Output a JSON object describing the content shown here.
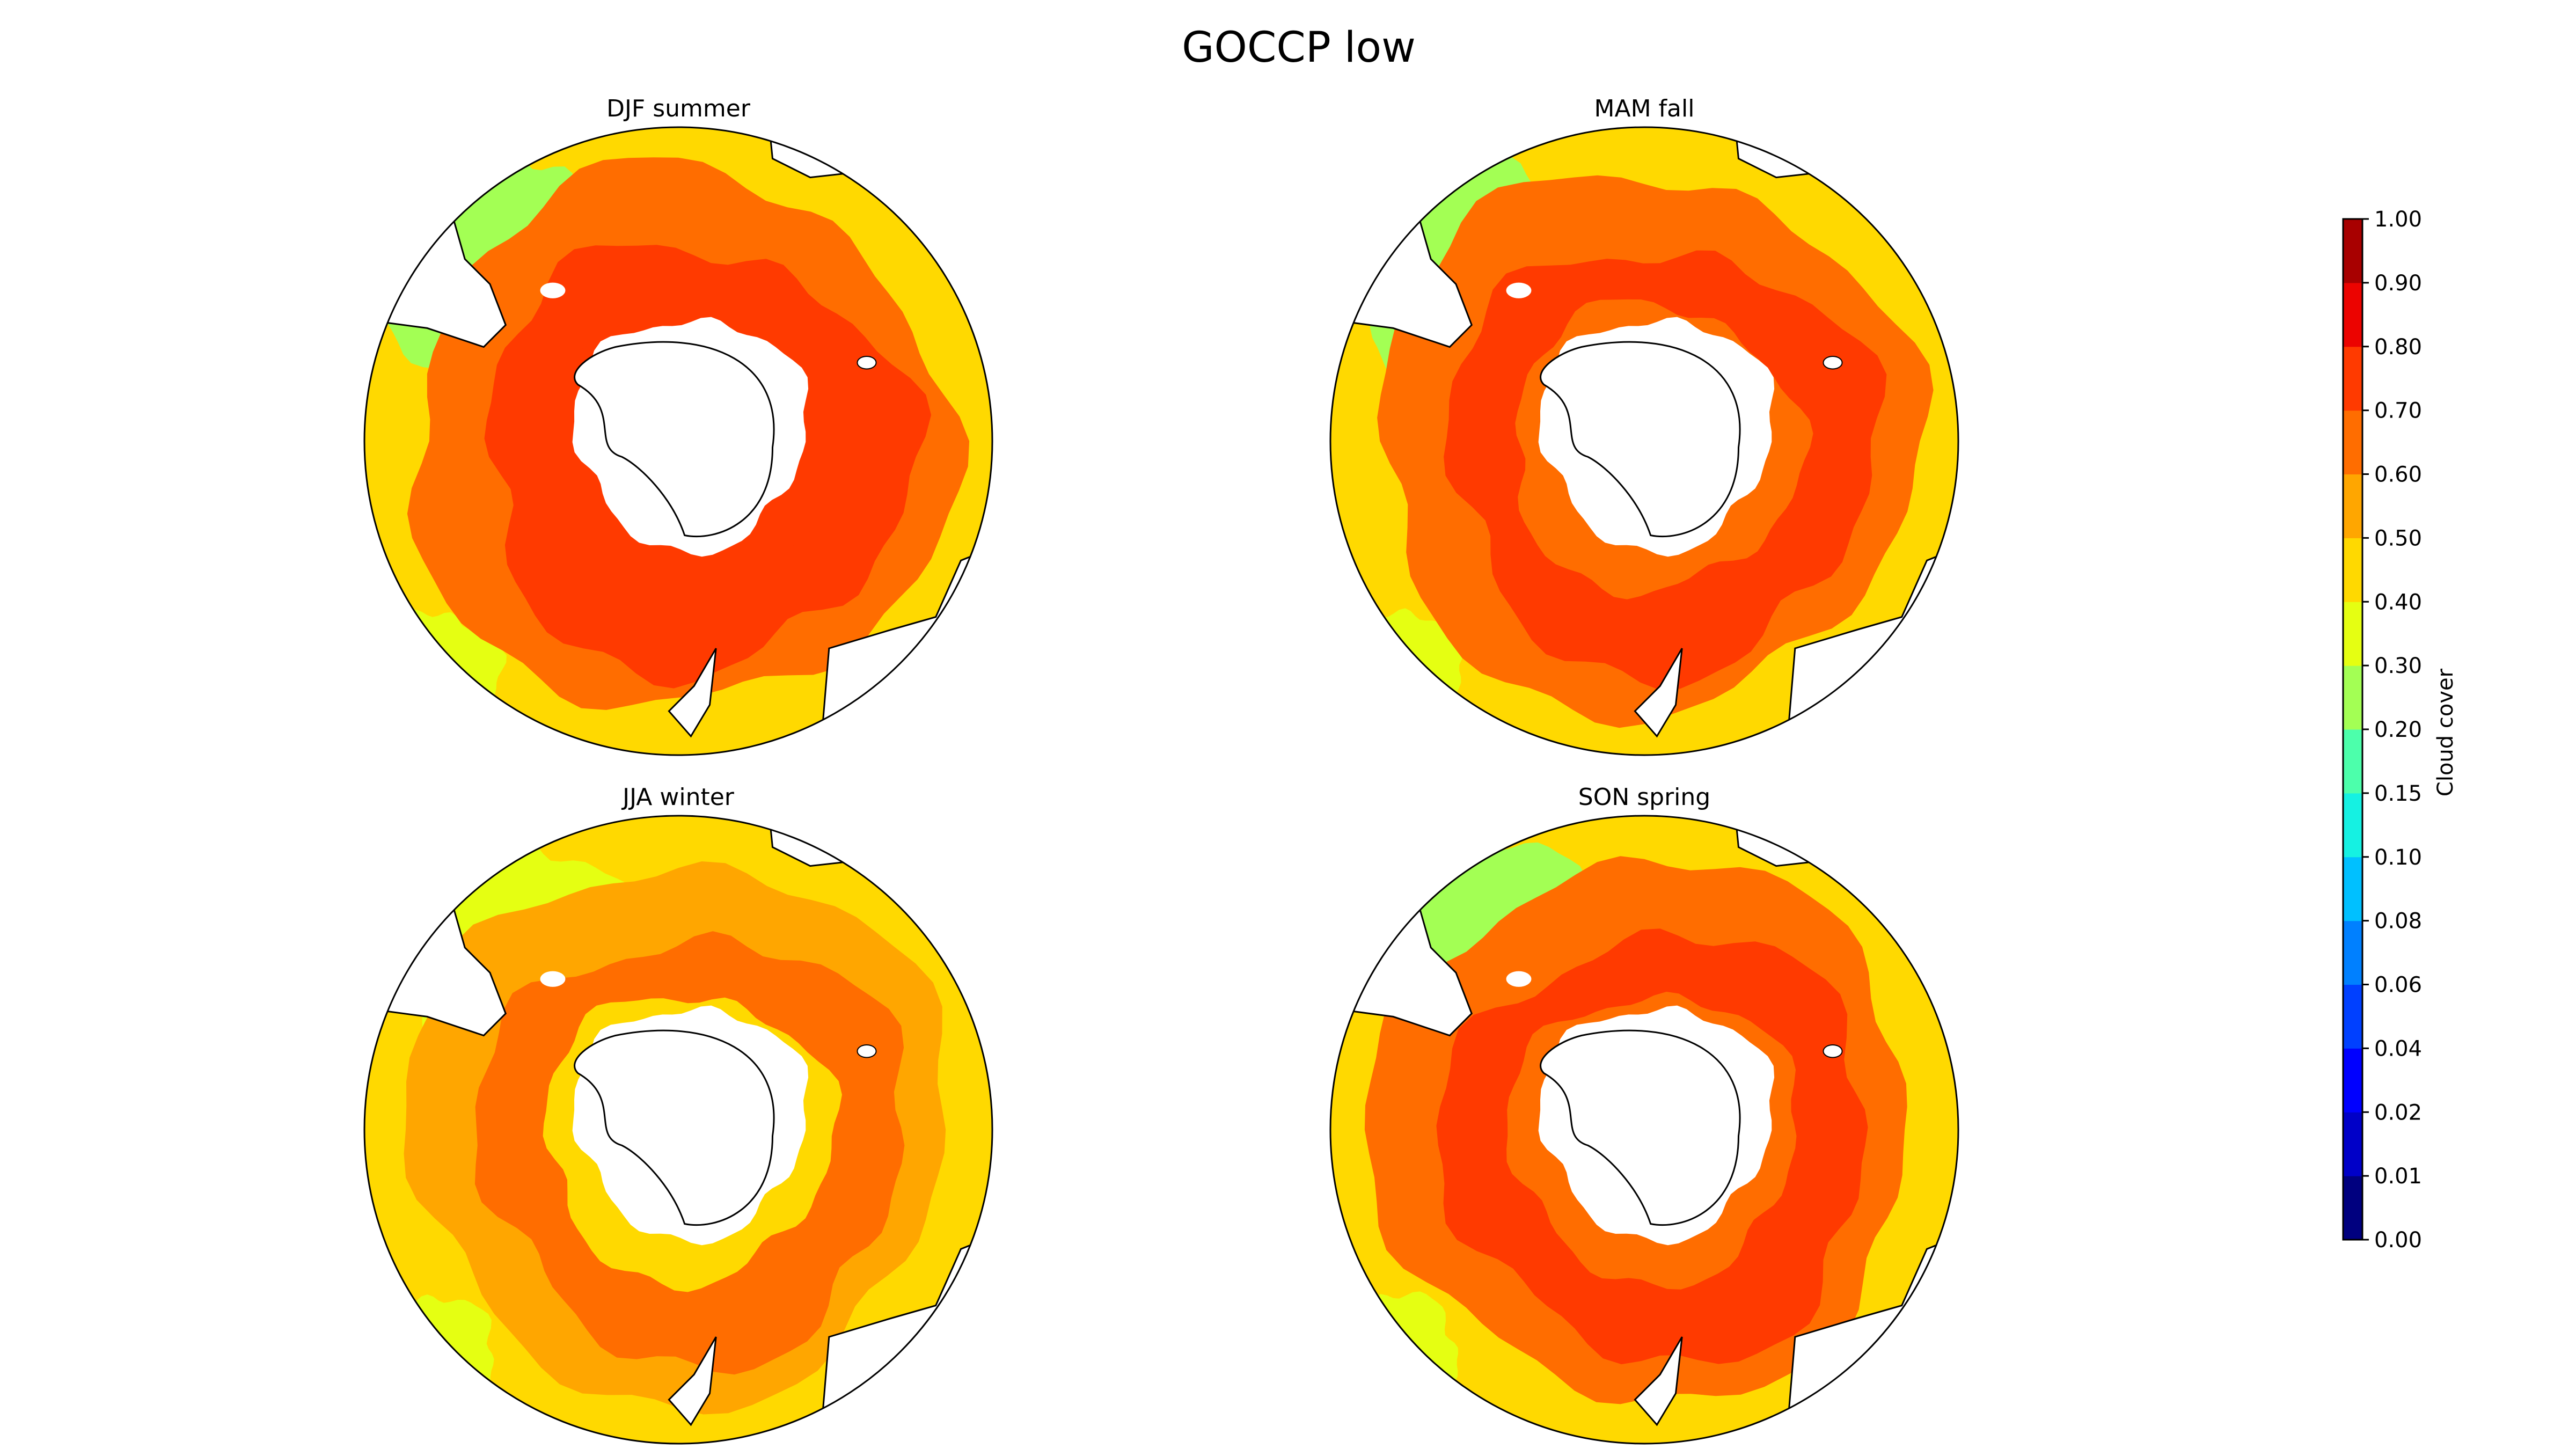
{
  "figure": {
    "title": "GOCCP low"
  },
  "panels": [
    {
      "title": "DJF summer",
      "season": "DJF",
      "inner_ring_level": "0.70",
      "cold_sector_level": "0.70",
      "warm_sector_level": "0.60",
      "outer_level": "0.40",
      "lowest_level": "0.20"
    },
    {
      "title": "MAM fall",
      "season": "MAM",
      "inner_ring_level": "0.60",
      "cold_sector_level": "0.70",
      "warm_sector_level": "0.60",
      "outer_level": "0.40",
      "lowest_level": "0.20"
    },
    {
      "title": "JJA winter",
      "season": "JJA",
      "inner_ring_level": "0.40",
      "cold_sector_level": "0.60",
      "warm_sector_level": "0.50",
      "outer_level": "0.40",
      "lowest_level": "0.30"
    },
    {
      "title": "SON spring",
      "season": "SON",
      "inner_ring_level": "0.60",
      "cold_sector_level": "0.70",
      "warm_sector_level": "0.60",
      "outer_level": "0.40",
      "lowest_level": "0.20"
    }
  ],
  "colorbar": {
    "label": "Cloud cover",
    "ticks": [
      "0.00",
      "0.01",
      "0.02",
      "0.04",
      "0.06",
      "0.08",
      "0.10",
      "0.15",
      "0.20",
      "0.30",
      "0.40",
      "0.50",
      "0.60",
      "0.70",
      "0.80",
      "0.90",
      "1.00"
    ],
    "colors": [
      "#00007f",
      "#0000c8",
      "#0000ff",
      "#0040ff",
      "#0080ff",
      "#00c0ff",
      "#15f1e2",
      "#4cffab",
      "#a3ff54",
      "#e5ff12",
      "#ffd900",
      "#ffa600",
      "#ff6d00",
      "#ff3a00",
      "#ec0300",
      "#a80000"
    ]
  },
  "level_colors": {
    "0.20": "#a3ff54",
    "0.30": "#e5ff12",
    "0.40": "#ffd900",
    "0.50": "#ffa600",
    "0.60": "#ff6d00",
    "0.70": "#ff3a00",
    "0.80": "#ec0300"
  },
  "style": {
    "land_color": "#ffffff",
    "coast_color": "#000000"
  }
}
